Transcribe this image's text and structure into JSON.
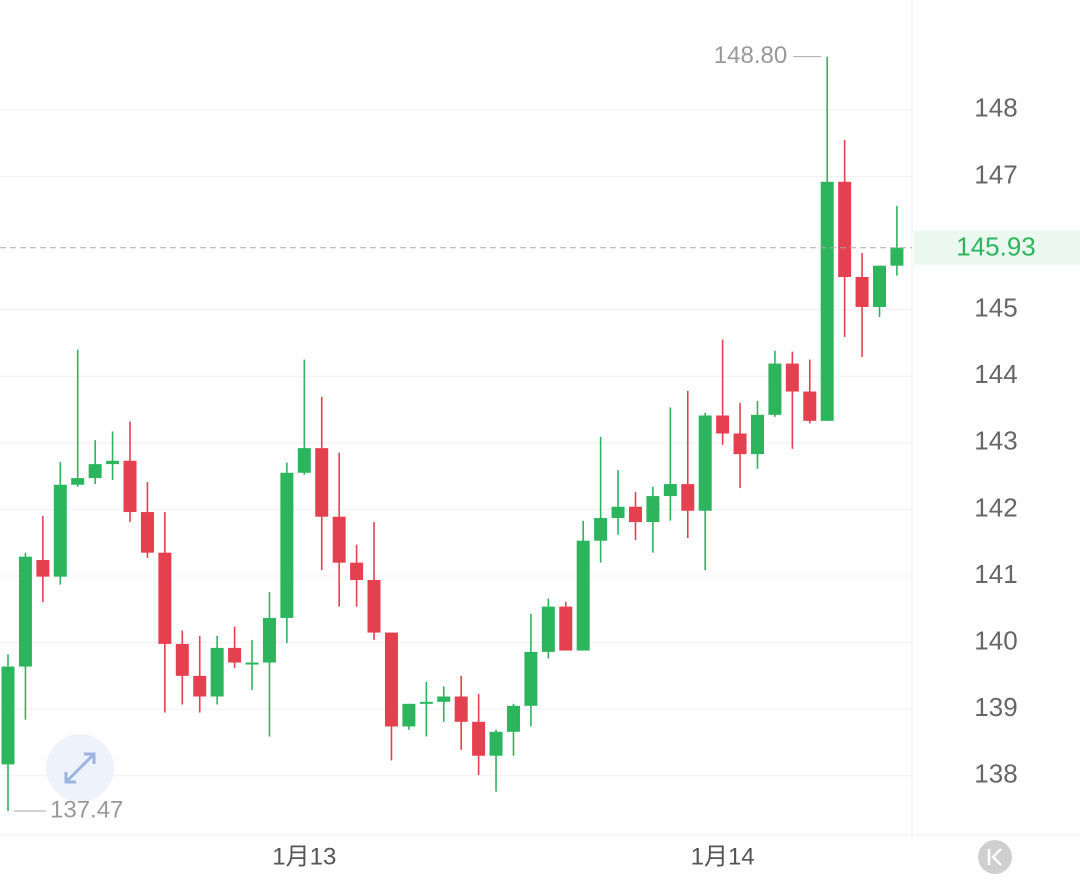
{
  "chart_data": {
    "type": "candlestick",
    "categories": [
      null,
      null,
      null,
      null,
      null,
      null,
      null,
      null,
      null,
      null,
      null,
      null,
      null,
      null,
      null,
      null,
      null,
      "1月13",
      null,
      null,
      null,
      null,
      null,
      null,
      null,
      null,
      null,
      null,
      null,
      null,
      null,
      null,
      null,
      null,
      null,
      null,
      null,
      null,
      null,
      null,
      null,
      "1月14",
      null,
      null,
      null,
      null,
      null,
      null,
      null,
      null,
      null,
      null
    ],
    "open": [
      138.17,
      139.64,
      141.24,
      140.99,
      142.37,
      142.47,
      142.68,
      142.73,
      141.96,
      141.35,
      139.98,
      139.5,
      139.19,
      139.92,
      139.69,
      139.7,
      140.37,
      142.55,
      142.92,
      141.89,
      141.2,
      140.94,
      140.15,
      138.74,
      139.08,
      139.11,
      139.19,
      138.81,
      138.3,
      138.66,
      139.05,
      139.86,
      140.54,
      139.88,
      141.53,
      141.87,
      142.04,
      141.81,
      142.2,
      142.38,
      141.98,
      143.41,
      143.14,
      142.83,
      143.42,
      144.19,
      143.77,
      143.33,
      146.92,
      145.49,
      145.04,
      145.66
    ],
    "high": [
      139.82,
      141.35,
      141.9,
      142.71,
      144.4,
      143.04,
      143.17,
      143.32,
      142.41,
      141.96,
      140.18,
      140.1,
      140.1,
      140.24,
      140.04,
      140.76,
      142.7,
      144.25,
      143.69,
      142.85,
      141.47,
      141.81,
      140.15,
      139.08,
      139.41,
      139.34,
      139.5,
      139.23,
      138.69,
      139.08,
      140.43,
      140.66,
      140.61,
      141.83,
      143.09,
      142.59,
      142.26,
      142.34,
      143.53,
      143.78,
      143.45,
      144.55,
      143.6,
      143.63,
      144.38,
      144.37,
      144.25,
      148.8,
      147.55,
      145.85,
      145.66,
      146.56
    ],
    "low": [
      137.47,
      138.84,
      140.61,
      140.87,
      142.34,
      142.38,
      142.44,
      141.81,
      141.27,
      138.95,
      139.07,
      138.95,
      139.07,
      139.62,
      139.29,
      138.59,
      139.99,
      142.52,
      141.09,
      140.54,
      140.54,
      140.04,
      138.23,
      138.69,
      138.59,
      138.81,
      138.39,
      138.01,
      137.76,
      138.3,
      138.74,
      139.76,
      139.88,
      139.88,
      141.2,
      141.62,
      141.54,
      141.35,
      141.83,
      141.57,
      141.09,
      142.97,
      142.32,
      142.61,
      143.39,
      142.91,
      143.29,
      143.33,
      144.59,
      144.29,
      144.89,
      145.51
    ],
    "close": [
      139.64,
      141.29,
      140.99,
      142.37,
      142.47,
      142.68,
      142.73,
      141.96,
      141.35,
      139.98,
      139.5,
      139.19,
      139.92,
      139.7,
      139.7,
      140.37,
      142.55,
      142.92,
      141.89,
      141.2,
      140.94,
      140.15,
      138.74,
      139.08,
      139.11,
      139.19,
      138.81,
      138.3,
      138.66,
      139.05,
      139.86,
      140.54,
      139.88,
      141.53,
      141.87,
      142.04,
      141.81,
      142.2,
      142.38,
      141.98,
      143.41,
      143.14,
      142.83,
      143.42,
      144.19,
      143.77,
      143.33,
      146.92,
      145.49,
      145.04,
      145.66,
      145.93
    ],
    "up_color": "#2db55d",
    "down_color": "#e5404f",
    "ylim": [
      137.11,
      149.65
    ],
    "yticks": [
      138,
      139,
      140,
      141,
      142,
      143,
      144,
      145,
      147,
      148
    ],
    "grid": true,
    "max_label": {
      "value": 148.8,
      "label": "148.80"
    },
    "min_label": {
      "value": 137.47,
      "label": "137.47"
    },
    "last_price": {
      "value": 145.93,
      "label": "145.93"
    }
  }
}
